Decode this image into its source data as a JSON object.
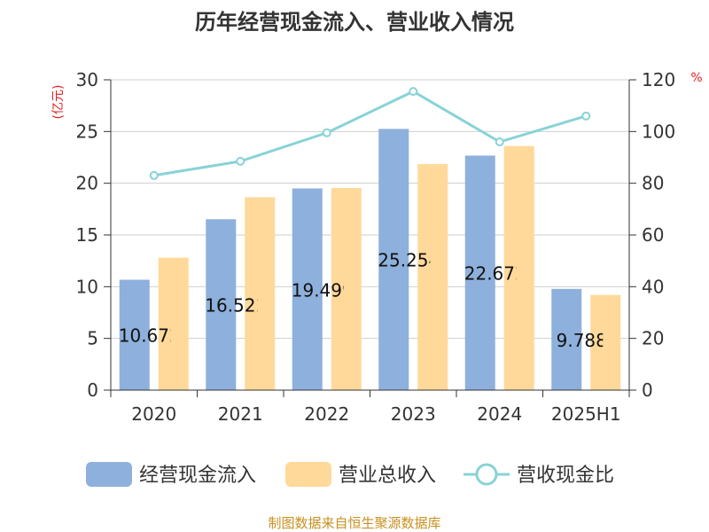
{
  "chart_data": {
    "type": "bar",
    "title": "历年经营现金流入、营业收入情况",
    "ylabel_left": "(亿元)",
    "ylabel_right": "%",
    "categories": [
      "2020",
      "2021",
      "2022",
      "2023",
      "2024",
      "2025H1"
    ],
    "ylim_left": [
      0,
      30
    ],
    "yticks_left": [
      0,
      5,
      10,
      15,
      20,
      25,
      30
    ],
    "ylim_right": [
      0,
      120
    ],
    "yticks_right": [
      0,
      20,
      40,
      60,
      80,
      100,
      120
    ],
    "grid": true,
    "legend_position": "bottom",
    "series": [
      {
        "name": "经营现金流入",
        "type": "bar",
        "axis": "left",
        "color": "#8eb0dc",
        "values": [
          10.672,
          16.522,
          19.499,
          25.254,
          22.672,
          9.788
        ],
        "data_labels": [
          "10.672",
          "16.522",
          "19.499",
          "25.254",
          "22.672",
          "9.788"
        ]
      },
      {
        "name": "营业总收入",
        "type": "bar",
        "axis": "left",
        "color": "#ffd99a",
        "values": [
          12.8,
          18.65,
          19.55,
          21.85,
          23.6,
          9.2
        ]
      },
      {
        "name": "营收现金比",
        "type": "line",
        "axis": "right",
        "color": "#88d3d7",
        "values": [
          83.0,
          88.5,
          99.5,
          115.5,
          96.0,
          106.0
        ]
      }
    ]
  },
  "source": "制图数据来自恒生聚源数据库"
}
